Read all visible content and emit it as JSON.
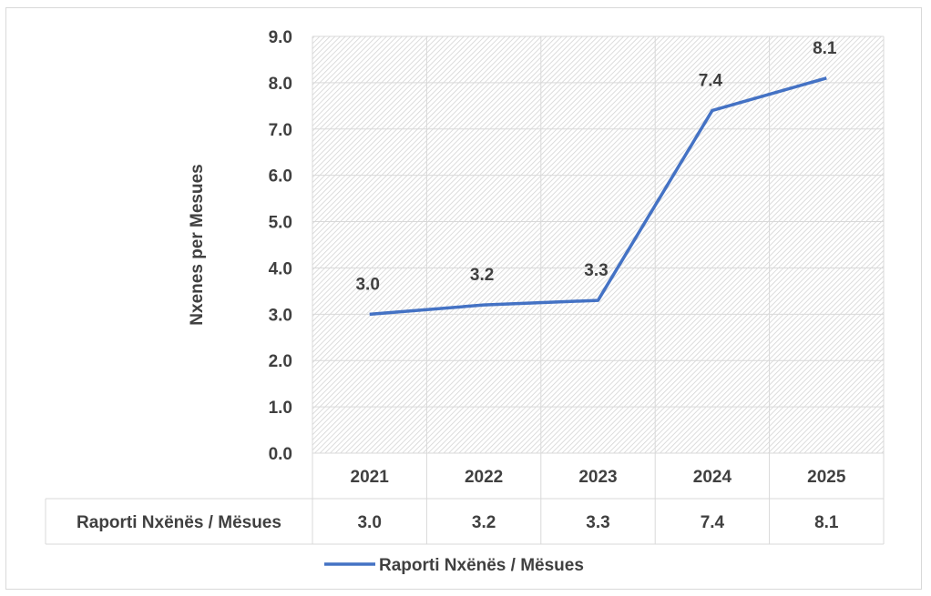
{
  "chart_data": {
    "type": "line",
    "categories": [
      "2021",
      "2022",
      "2023",
      "2024",
      "2025"
    ],
    "series": [
      {
        "name": "Raporti Nxënës / Mësues",
        "values": [
          3.0,
          3.2,
          3.3,
          7.4,
          8.1
        ],
        "labels": [
          "3.0",
          "3.2",
          "3.3",
          "7.4",
          "8.1"
        ]
      }
    ],
    "ylabel": "Nxenes per Mesues",
    "ylim": [
      0,
      9
    ],
    "yticks": [
      "0.0",
      "1.0",
      "2.0",
      "3.0",
      "4.0",
      "5.0",
      "6.0",
      "7.0",
      "8.0",
      "9.0"
    ],
    "grid": true,
    "data_table": true,
    "legend_position": "bottom",
    "line_color": "#4472c4"
  }
}
